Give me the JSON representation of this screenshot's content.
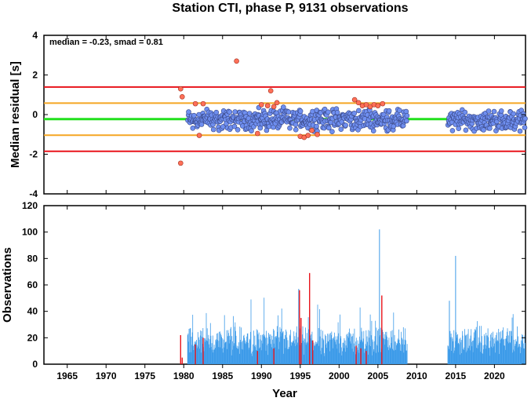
{
  "chart_data": [
    {
      "type": "scatter",
      "title": "Station CTI, phase P, 9131 observations",
      "ylabel": "Median residual [s]",
      "annotation": "median = -0.23, smad = 0.81",
      "xlim": [
        1962,
        2024
      ],
      "ylim": [
        -4,
        4
      ],
      "yticks": [
        -4,
        -2,
        0,
        2,
        4
      ],
      "reference_lines": [
        {
          "value": 1.39,
          "color": "#e8141c"
        },
        {
          "value": 0.58,
          "color": "#f5a623"
        },
        {
          "value": -0.23,
          "color": "#22e01e"
        },
        {
          "value": -1.04,
          "color": "#f5a623"
        },
        {
          "value": -1.85,
          "color": "#e8141c"
        }
      ],
      "series": [
        {
          "color": "#6f8ff0",
          "x_range": [
            1980.5,
            2008.8
          ],
          "y_typical_range": [
            -0.9,
            0.4
          ]
        },
        {
          "color": "#6f8ff0",
          "x_range": [
            2014.0,
            2024.0
          ],
          "y_typical_range": [
            -0.9,
            0.3
          ]
        },
        {
          "color": "#ff7058",
          "x": [
            1979.6,
            1979.8,
            1979.6,
            1981.5,
            1982.0,
            1982.5,
            1986.8,
            1989.5,
            1990.0,
            1990.8,
            1991.2,
            1991.6,
            1992.0,
            1995.0,
            1995.5,
            1996.0,
            1996.5,
            1997.2,
            2002.0,
            2002.5,
            2003.0,
            2003.5,
            2004.0,
            2004.5,
            2005.0,
            2005.6
          ],
          "y": [
            1.3,
            0.9,
            -2.45,
            0.55,
            -1.05,
            0.55,
            2.7,
            -0.95,
            0.5,
            0.45,
            1.2,
            0.4,
            0.6,
            -1.1,
            -1.15,
            -1.05,
            -0.8,
            -1.0,
            0.75,
            0.6,
            0.45,
            0.5,
            0.4,
            0.5,
            0.45,
            0.55
          ]
        }
      ]
    },
    {
      "type": "bar",
      "xlabel": "Year",
      "ylabel": "Observations",
      "xlim": [
        1962,
        2024
      ],
      "ylim": [
        0,
        120
      ],
      "xticks": [
        1965,
        1970,
        1975,
        1980,
        1985,
        1990,
        1995,
        2000,
        2005,
        2010,
        2015,
        2020
      ],
      "yticks": [
        0,
        20,
        40,
        60,
        80,
        100,
        120
      ],
      "series": [
        {
          "color": "#3d9be9",
          "segments": [
            [
              1980.5,
              2008.8
            ],
            [
              2014.0,
              2024.0
            ]
          ],
          "typical_range": [
            5,
            30
          ],
          "peaks": [
            {
              "x": 2005.2,
              "y": 102
            },
            {
              "x": 2015.0,
              "y": 82
            },
            {
              "x": 1994.8,
              "y": 57
            },
            {
              "x": 2014.2,
              "y": 48
            }
          ]
        },
        {
          "color": "#e8141c",
          "x": [
            1979.6,
            1979.8,
            1981.5,
            1982.5,
            1989.5,
            1991.6,
            1994.9,
            1995.1,
            1996.2,
            1996.6,
            2002.2,
            2002.8,
            2003.5,
            2005.5
          ],
          "values": [
            22,
            5,
            15,
            20,
            10,
            12,
            56,
            35,
            69,
            18,
            14,
            12,
            10,
            52
          ]
        }
      ]
    }
  ]
}
